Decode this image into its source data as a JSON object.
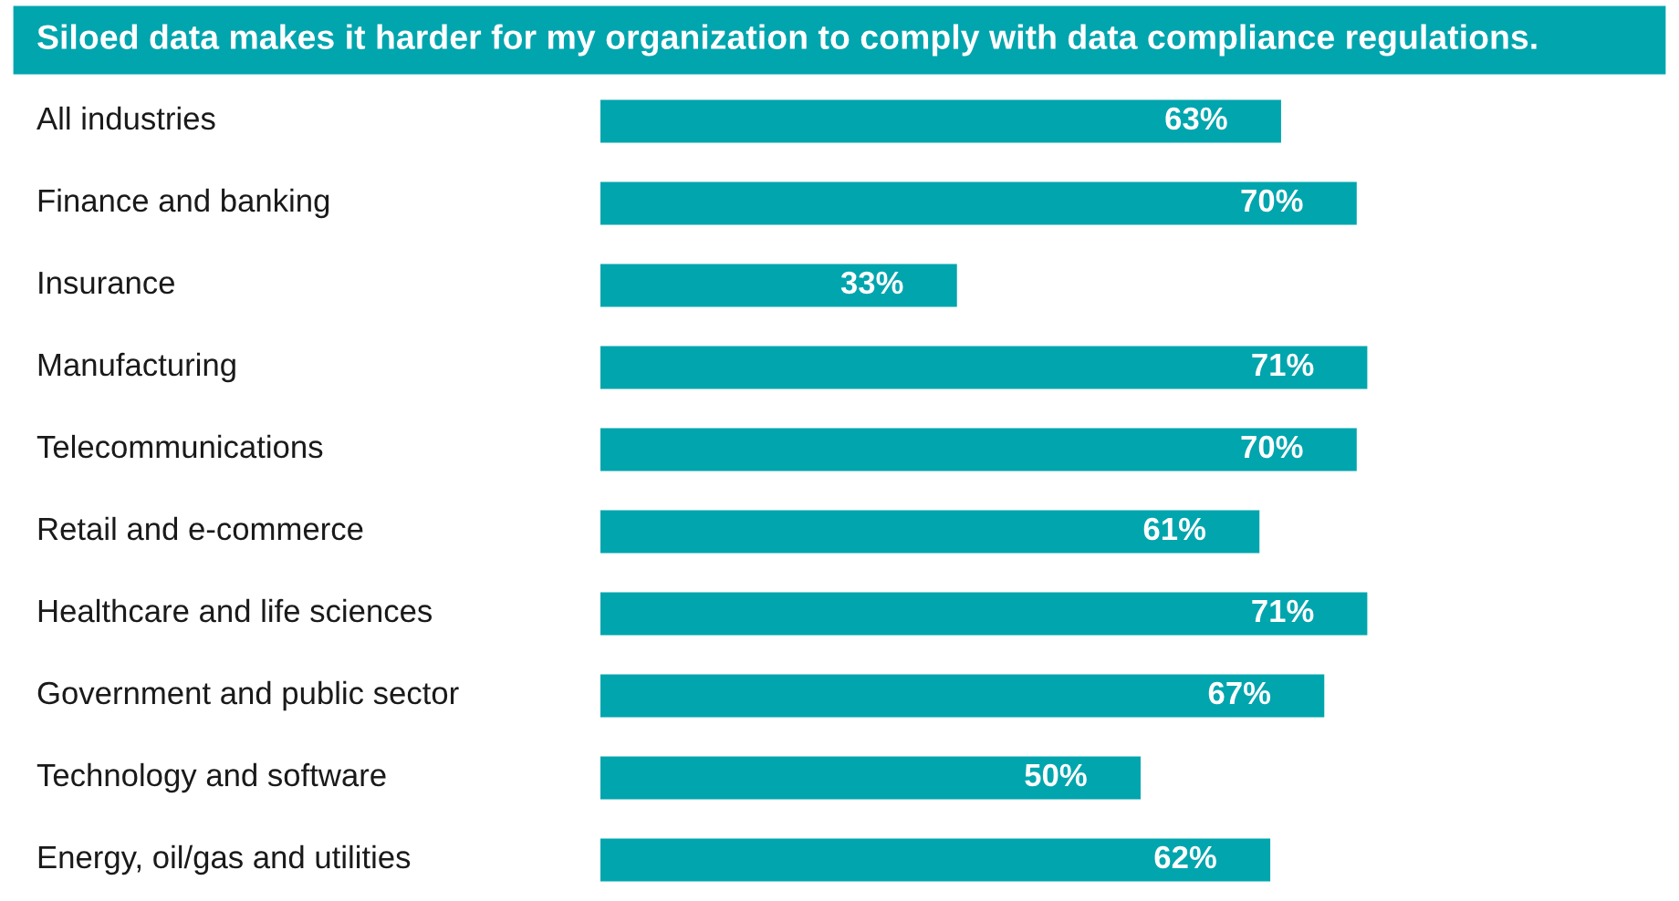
{
  "chart_data": {
    "type": "bar",
    "orientation": "horizontal",
    "title": "Siloed data makes it harder for my organization to comply with data compliance regulations.",
    "categories": [
      "All industries",
      "Finance and banking",
      "Insurance",
      "Manufacturing",
      "Telecommunications",
      "Retail and e-commerce",
      "Healthcare and life sciences",
      "Government and public sector",
      "Technology and software",
      "Energy, oil/gas and utilities"
    ],
    "values": [
      63,
      70,
      33,
      71,
      70,
      61,
      71,
      67,
      50,
      62
    ],
    "value_labels": [
      "63%",
      "70%",
      "33%",
      "71%",
      "70%",
      "61%",
      "71%",
      "67%",
      "50%",
      "62%"
    ],
    "color": "#00a5ae",
    "tick_labels": "y",
    "grid": false,
    "legend": false
  }
}
